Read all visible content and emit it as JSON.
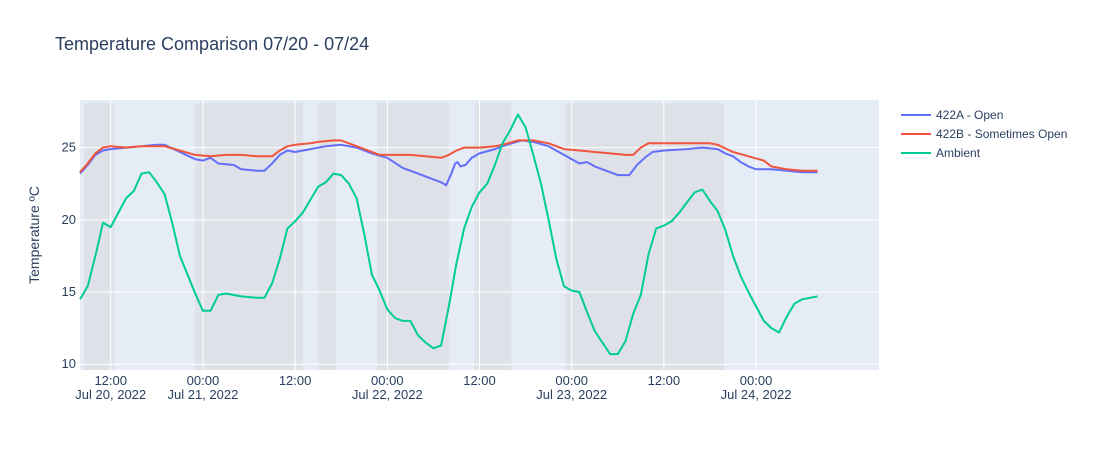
{
  "chart_data": {
    "type": "line",
    "title": "Temperature Comparison 07/20 - 07/24",
    "xlabel": "",
    "ylabel": "Temperature ºC",
    "x_range": [
      "2022-07-20T08:00",
      "2022-07-24T16:00"
    ],
    "ylim": [
      9.6,
      28.3
    ],
    "yticks": [
      10,
      15,
      20,
      25
    ],
    "xticks": [
      {
        "t": "2022-07-20T12:00",
        "line1": "12:00",
        "line2": "Jul 20, 2022"
      },
      {
        "t": "2022-07-21T00:00",
        "line1": "00:00",
        "line2": "Jul 21, 2022"
      },
      {
        "t": "2022-07-21T12:00",
        "line1": "12:00",
        "line2": ""
      },
      {
        "t": "2022-07-22T00:00",
        "line1": "00:00",
        "line2": "Jul 22, 2022"
      },
      {
        "t": "2022-07-22T12:00",
        "line1": "12:00",
        "line2": ""
      },
      {
        "t": "2022-07-23T00:00",
        "line1": "00:00",
        "line2": "Jul 23, 2022"
      },
      {
        "t": "2022-07-23T12:00",
        "line1": "12:00",
        "line2": ""
      },
      {
        "t": "2022-07-24T00:00",
        "line1": "00:00",
        "line2": "Jul 24, 2022"
      }
    ],
    "shaded_periods": [
      [
        "2022-07-20T08:30",
        "2022-07-20T12:30"
      ],
      [
        "2022-07-20T23:00",
        "2022-07-21T13:00"
      ],
      [
        "2022-07-21T15:00",
        "2022-07-21T17:20"
      ],
      [
        "2022-07-21T22:40",
        "2022-07-22T08:00"
      ],
      [
        "2022-07-22T11:20",
        "2022-07-22T16:10"
      ],
      [
        "2022-07-22T23:10",
        "2022-07-23T19:50"
      ]
    ],
    "legend_position": "top-right",
    "grid": true,
    "series": [
      {
        "name": "422A - Open",
        "color": "#636efa",
        "points": [
          [
            "2022-07-20T08:00",
            23.2
          ],
          [
            "2022-07-20T09:00",
            23.8
          ],
          [
            "2022-07-20T10:00",
            24.5
          ],
          [
            "2022-07-20T11:00",
            24.8
          ],
          [
            "2022-07-20T12:00",
            24.9
          ],
          [
            "2022-07-20T14:00",
            25.0
          ],
          [
            "2022-07-20T16:00",
            25.1
          ],
          [
            "2022-07-20T18:00",
            25.2
          ],
          [
            "2022-07-20T19:00",
            25.2
          ],
          [
            "2022-07-20T21:00",
            24.7
          ],
          [
            "2022-07-20T23:00",
            24.2
          ],
          [
            "2022-07-21T00:00",
            24.1
          ],
          [
            "2022-07-21T01:00",
            24.3
          ],
          [
            "2022-07-21T02:00",
            23.9
          ],
          [
            "2022-07-21T04:00",
            23.8
          ],
          [
            "2022-07-21T05:00",
            23.5
          ],
          [
            "2022-07-21T07:00",
            23.4
          ],
          [
            "2022-07-21T08:00",
            23.4
          ],
          [
            "2022-07-21T09:00",
            23.9
          ],
          [
            "2022-07-21T10:00",
            24.5
          ],
          [
            "2022-07-21T11:00",
            24.8
          ],
          [
            "2022-07-21T12:00",
            24.7
          ],
          [
            "2022-07-21T14:00",
            24.9
          ],
          [
            "2022-07-21T16:00",
            25.1
          ],
          [
            "2022-07-21T18:00",
            25.2
          ],
          [
            "2022-07-21T20:00",
            25.0
          ],
          [
            "2022-07-21T22:00",
            24.6
          ],
          [
            "2022-07-22T00:00",
            24.3
          ],
          [
            "2022-07-22T02:00",
            23.6
          ],
          [
            "2022-07-22T04:00",
            23.2
          ],
          [
            "2022-07-22T06:00",
            22.8
          ],
          [
            "2022-07-22T07:00",
            22.6
          ],
          [
            "2022-07-22T07:40",
            22.4
          ],
          [
            "2022-07-22T08:20",
            23.2
          ],
          [
            "2022-07-22T08:50",
            23.9
          ],
          [
            "2022-07-22T09:10",
            24.0
          ],
          [
            "2022-07-22T09:30",
            23.7
          ],
          [
            "2022-07-22T10:10",
            23.8
          ],
          [
            "2022-07-22T11:00",
            24.3
          ],
          [
            "2022-07-22T12:00",
            24.6
          ],
          [
            "2022-07-22T14:00",
            24.9
          ],
          [
            "2022-07-22T15:30",
            25.2
          ],
          [
            "2022-07-22T17:30",
            25.5
          ],
          [
            "2022-07-22T19:00",
            25.4
          ],
          [
            "2022-07-22T21:00",
            25.1
          ],
          [
            "2022-07-22T23:00",
            24.5
          ],
          [
            "2022-07-23T01:00",
            23.9
          ],
          [
            "2022-07-23T02:00",
            24.0
          ],
          [
            "2022-07-23T03:00",
            23.7
          ],
          [
            "2022-07-23T05:00",
            23.3
          ],
          [
            "2022-07-23T06:00",
            23.1
          ],
          [
            "2022-07-23T07:30",
            23.1
          ],
          [
            "2022-07-23T08:30",
            23.8
          ],
          [
            "2022-07-23T09:30",
            24.3
          ],
          [
            "2022-07-23T10:30",
            24.7
          ],
          [
            "2022-07-23T12:00",
            24.8
          ],
          [
            "2022-07-23T15:00",
            24.9
          ],
          [
            "2022-07-23T17:00",
            25.0
          ],
          [
            "2022-07-23T19:00",
            24.9
          ],
          [
            "2022-07-23T20:00",
            24.6
          ],
          [
            "2022-07-23T21:00",
            24.4
          ],
          [
            "2022-07-23T22:00",
            24.0
          ],
          [
            "2022-07-23T23:00",
            23.7
          ],
          [
            "2022-07-24T00:00",
            23.5
          ],
          [
            "2022-07-24T02:00",
            23.5
          ],
          [
            "2022-07-24T04:00",
            23.4
          ],
          [
            "2022-07-24T06:00",
            23.3
          ],
          [
            "2022-07-24T08:00",
            23.3
          ]
        ]
      },
      {
        "name": "422B - Sometimes Open",
        "color": "#ef553b",
        "points": [
          [
            "2022-07-20T08:00",
            23.3
          ],
          [
            "2022-07-20T09:00",
            23.9
          ],
          [
            "2022-07-20T10:00",
            24.6
          ],
          [
            "2022-07-20T11:00",
            25.0
          ],
          [
            "2022-07-20T12:00",
            25.1
          ],
          [
            "2022-07-20T14:00",
            25.0
          ],
          [
            "2022-07-20T16:00",
            25.1
          ],
          [
            "2022-07-20T18:00",
            25.1
          ],
          [
            "2022-07-20T19:00",
            25.1
          ],
          [
            "2022-07-20T21:00",
            24.8
          ],
          [
            "2022-07-20T23:00",
            24.5
          ],
          [
            "2022-07-21T01:00",
            24.4
          ],
          [
            "2022-07-21T03:00",
            24.5
          ],
          [
            "2022-07-21T05:00",
            24.5
          ],
          [
            "2022-07-21T07:00",
            24.4
          ],
          [
            "2022-07-21T09:00",
            24.4
          ],
          [
            "2022-07-21T10:00",
            24.8
          ],
          [
            "2022-07-21T11:00",
            25.1
          ],
          [
            "2022-07-21T12:00",
            25.2
          ],
          [
            "2022-07-21T14:00",
            25.3
          ],
          [
            "2022-07-21T15:00",
            25.4
          ],
          [
            "2022-07-21T17:00",
            25.5
          ],
          [
            "2022-07-21T18:00",
            25.5
          ],
          [
            "2022-07-21T19:00",
            25.3
          ],
          [
            "2022-07-21T21:00",
            24.9
          ],
          [
            "2022-07-21T23:00",
            24.5
          ],
          [
            "2022-07-22T01:00",
            24.5
          ],
          [
            "2022-07-22T03:00",
            24.5
          ],
          [
            "2022-07-22T05:00",
            24.4
          ],
          [
            "2022-07-22T07:00",
            24.3
          ],
          [
            "2022-07-22T08:00",
            24.5
          ],
          [
            "2022-07-22T09:00",
            24.8
          ],
          [
            "2022-07-22T10:00",
            25.0
          ],
          [
            "2022-07-22T12:00",
            25.0
          ],
          [
            "2022-07-22T14:00",
            25.1
          ],
          [
            "2022-07-22T15:00",
            25.2
          ],
          [
            "2022-07-22T17:00",
            25.5
          ],
          [
            "2022-07-22T19:00",
            25.5
          ],
          [
            "2022-07-22T21:00",
            25.3
          ],
          [
            "2022-07-22T23:00",
            24.9
          ],
          [
            "2022-07-23T01:00",
            24.8
          ],
          [
            "2022-07-23T03:00",
            24.7
          ],
          [
            "2022-07-23T05:00",
            24.6
          ],
          [
            "2022-07-23T07:00",
            24.5
          ],
          [
            "2022-07-23T08:00",
            24.5
          ],
          [
            "2022-07-23T09:00",
            25.0
          ],
          [
            "2022-07-23T10:00",
            25.3
          ],
          [
            "2022-07-23T12:00",
            25.3
          ],
          [
            "2022-07-23T15:00",
            25.3
          ],
          [
            "2022-07-23T18:00",
            25.3
          ],
          [
            "2022-07-23T19:00",
            25.2
          ],
          [
            "2022-07-23T21:00",
            24.7
          ],
          [
            "2022-07-23T23:00",
            24.4
          ],
          [
            "2022-07-24T01:00",
            24.1
          ],
          [
            "2022-07-24T02:00",
            23.7
          ],
          [
            "2022-07-24T04:00",
            23.5
          ],
          [
            "2022-07-24T06:00",
            23.4
          ],
          [
            "2022-07-24T08:00",
            23.4
          ]
        ]
      },
      {
        "name": "Ambient",
        "color": "#00cc96",
        "points": [
          [
            "2022-07-20T08:00",
            14.5
          ],
          [
            "2022-07-20T09:00",
            15.4
          ],
          [
            "2022-07-20T10:00",
            17.5
          ],
          [
            "2022-07-20T11:00",
            19.8
          ],
          [
            "2022-07-20T12:00",
            19.5
          ],
          [
            "2022-07-20T13:00",
            20.5
          ],
          [
            "2022-07-20T14:00",
            21.5
          ],
          [
            "2022-07-20T15:00",
            22.0
          ],
          [
            "2022-07-20T16:00",
            23.2
          ],
          [
            "2022-07-20T17:00",
            23.3
          ],
          [
            "2022-07-20T18:00",
            22.6
          ],
          [
            "2022-07-20T19:00",
            21.8
          ],
          [
            "2022-07-20T20:00",
            19.8
          ],
          [
            "2022-07-20T21:00",
            17.5
          ],
          [
            "2022-07-20T22:00",
            16.2
          ],
          [
            "2022-07-20T23:00",
            14.9
          ],
          [
            "2022-07-21T00:00",
            13.7
          ],
          [
            "2022-07-21T01:00",
            13.7
          ],
          [
            "2022-07-21T02:00",
            14.8
          ],
          [
            "2022-07-21T03:00",
            14.9
          ],
          [
            "2022-07-21T05:00",
            14.7
          ],
          [
            "2022-07-21T07:00",
            14.6
          ],
          [
            "2022-07-21T08:00",
            14.6
          ],
          [
            "2022-07-21T09:00",
            15.6
          ],
          [
            "2022-07-21T10:00",
            17.3
          ],
          [
            "2022-07-21T11:00",
            19.4
          ],
          [
            "2022-07-21T12:00",
            19.9
          ],
          [
            "2022-07-21T13:00",
            20.5
          ],
          [
            "2022-07-21T14:00",
            21.4
          ],
          [
            "2022-07-21T15:00",
            22.3
          ],
          [
            "2022-07-21T16:00",
            22.6
          ],
          [
            "2022-07-21T17:00",
            23.2
          ],
          [
            "2022-07-21T18:00",
            23.1
          ],
          [
            "2022-07-21T19:00",
            22.5
          ],
          [
            "2022-07-21T20:00",
            21.5
          ],
          [
            "2022-07-21T21:00",
            19.0
          ],
          [
            "2022-07-21T22:00",
            16.2
          ],
          [
            "2022-07-21T23:00",
            15.1
          ],
          [
            "2022-07-22T00:00",
            13.8
          ],
          [
            "2022-07-22T01:00",
            13.2
          ],
          [
            "2022-07-22T02:00",
            13.0
          ],
          [
            "2022-07-22T03:00",
            13.0
          ],
          [
            "2022-07-22T04:00",
            12.0
          ],
          [
            "2022-07-22T05:00",
            11.5
          ],
          [
            "2022-07-22T06:00",
            11.1
          ],
          [
            "2022-07-22T07:00",
            11.3
          ],
          [
            "2022-07-22T08:00",
            14.0
          ],
          [
            "2022-07-22T09:00",
            17.0
          ],
          [
            "2022-07-22T10:00",
            19.4
          ],
          [
            "2022-07-22T11:00",
            20.9
          ],
          [
            "2022-07-22T12:00",
            21.9
          ],
          [
            "2022-07-22T13:00",
            22.5
          ],
          [
            "2022-07-22T14:00",
            23.8
          ],
          [
            "2022-07-22T15:00",
            25.3
          ],
          [
            "2022-07-22T16:00",
            26.2
          ],
          [
            "2022-07-22T17:00",
            27.3
          ],
          [
            "2022-07-22T18:00",
            26.4
          ],
          [
            "2022-07-22T19:00",
            24.5
          ],
          [
            "2022-07-22T20:00",
            22.5
          ],
          [
            "2022-07-22T21:00",
            20.0
          ],
          [
            "2022-07-22T22:00",
            17.3
          ],
          [
            "2022-07-22T23:00",
            15.4
          ],
          [
            "2022-07-23T00:00",
            15.1
          ],
          [
            "2022-07-23T01:00",
            15.0
          ],
          [
            "2022-07-23T02:00",
            13.6
          ],
          [
            "2022-07-23T03:00",
            12.3
          ],
          [
            "2022-07-23T04:00",
            11.5
          ],
          [
            "2022-07-23T05:00",
            10.7
          ],
          [
            "2022-07-23T06:00",
            10.7
          ],
          [
            "2022-07-23T07:00",
            11.6
          ],
          [
            "2022-07-23T08:00",
            13.5
          ],
          [
            "2022-07-23T09:00",
            14.8
          ],
          [
            "2022-07-23T10:00",
            17.6
          ],
          [
            "2022-07-23T11:00",
            19.4
          ],
          [
            "2022-07-23T12:00",
            19.6
          ],
          [
            "2022-07-23T13:00",
            19.9
          ],
          [
            "2022-07-23T14:00",
            20.5
          ],
          [
            "2022-07-23T15:00",
            21.2
          ],
          [
            "2022-07-23T16:00",
            21.9
          ],
          [
            "2022-07-23T17:00",
            22.1
          ],
          [
            "2022-07-23T18:00",
            21.3
          ],
          [
            "2022-07-23T19:00",
            20.6
          ],
          [
            "2022-07-23T20:00",
            19.3
          ],
          [
            "2022-07-23T21:00",
            17.5
          ],
          [
            "2022-07-23T22:00",
            16.1
          ],
          [
            "2022-07-23T23:00",
            15.0
          ],
          [
            "2022-07-24T00:00",
            14.0
          ],
          [
            "2022-07-24T01:00",
            13.0
          ],
          [
            "2022-07-24T02:00",
            12.5
          ],
          [
            "2022-07-24T03:00",
            12.2
          ],
          [
            "2022-07-24T04:00",
            13.3
          ],
          [
            "2022-07-24T05:00",
            14.2
          ],
          [
            "2022-07-24T06:00",
            14.5
          ],
          [
            "2022-07-24T08:00",
            14.7
          ]
        ]
      }
    ]
  }
}
